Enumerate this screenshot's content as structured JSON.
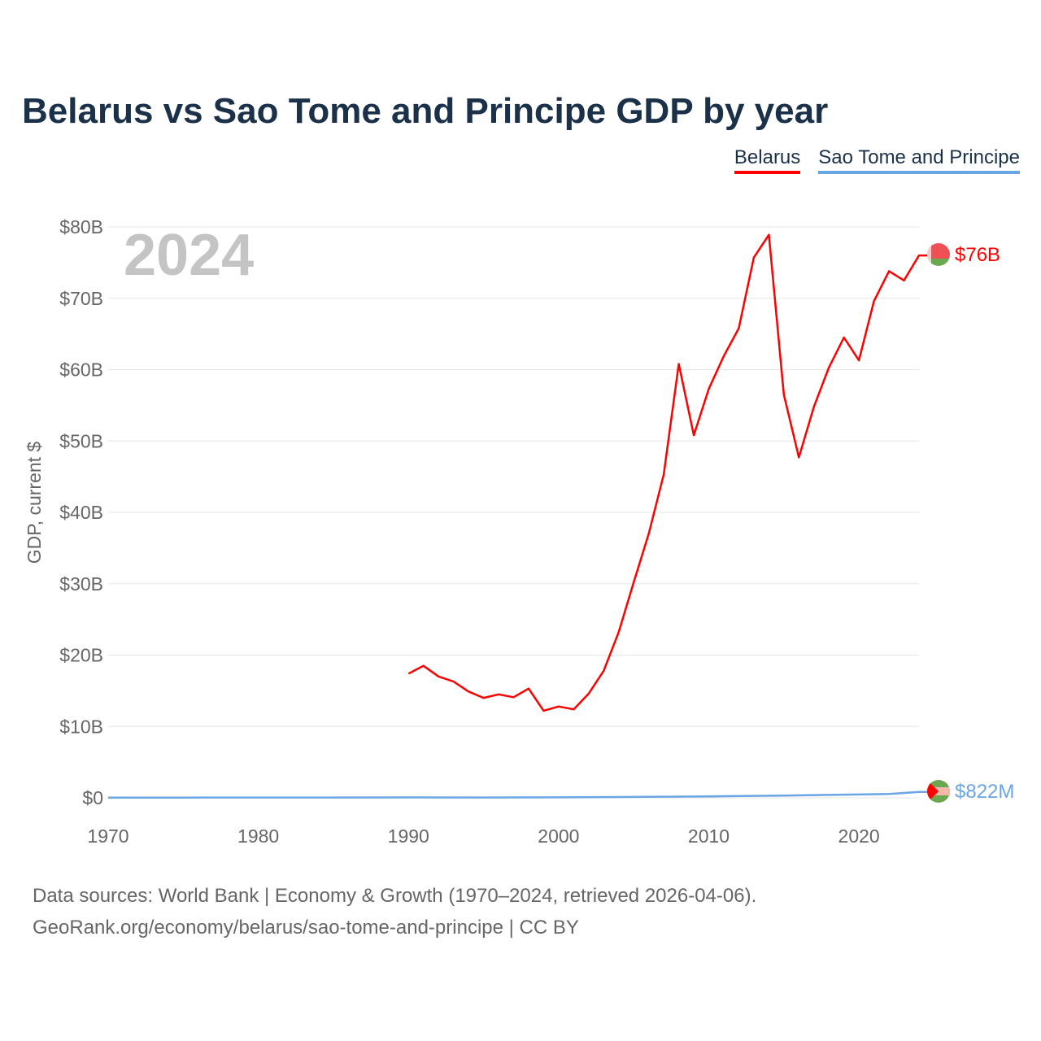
{
  "chart_data": {
    "type": "line",
    "title": "Belarus vs Sao Tome and Principe GDP by year",
    "ylabel": "GDP, current $",
    "xlabel": "",
    "xlim": [
      1970,
      2024
    ],
    "ylim": [
      0,
      80
    ],
    "yunit": "billions USD",
    "x_ticks": [
      1970,
      1980,
      1990,
      2000,
      2010,
      2020
    ],
    "y_ticks": [
      0,
      10,
      20,
      30,
      40,
      50,
      60,
      70,
      80
    ],
    "y_tick_labels": [
      "$0",
      "$10B",
      "$20B",
      "$30B",
      "$40B",
      "$50B",
      "$60B",
      "$70B",
      "$80B"
    ],
    "grid": true,
    "legend_position": "top-right",
    "year_watermark": "2024",
    "series": [
      {
        "name": "Belarus",
        "color": "#ff0000",
        "end_label": "$76B",
        "x": [
          1990,
          1991,
          1992,
          1993,
          1994,
          1995,
          1996,
          1997,
          1998,
          1999,
          2000,
          2001,
          2002,
          2003,
          2004,
          2005,
          2006,
          2007,
          2008,
          2009,
          2010,
          2011,
          2012,
          2013,
          2014,
          2015,
          2016,
          2017,
          2018,
          2019,
          2020,
          2021,
          2022,
          2023,
          2024
        ],
        "values": [
          17.4,
          18.5,
          17.0,
          16.3,
          14.9,
          14.0,
          14.5,
          14.1,
          15.3,
          12.2,
          12.8,
          12.4,
          14.6,
          17.8,
          23.2,
          30.2,
          37.0,
          45.3,
          60.8,
          50.8,
          57.3,
          61.9,
          65.8,
          75.7,
          78.9,
          56.5,
          47.7,
          54.8,
          60.3,
          64.5,
          61.3,
          69.6,
          73.8,
          72.5,
          76.0
        ]
      },
      {
        "name": "Sao Tome and Principe",
        "color": "#6aa5e6",
        "end_label": "$822M",
        "x": [
          1970,
          1975,
          1980,
          1985,
          1990,
          1995,
          2000,
          2005,
          2010,
          2015,
          2018,
          2020,
          2022,
          2023,
          2024
        ],
        "values": [
          0.02,
          0.03,
          0.05,
          0.05,
          0.06,
          0.05,
          0.07,
          0.12,
          0.2,
          0.32,
          0.41,
          0.47,
          0.55,
          0.68,
          0.822
        ]
      }
    ]
  },
  "footer": {
    "line1": "Data sources: World Bank | Economy & Growth (1970–2024, retrieved 2026-04-06).",
    "line2": "GeoRank.org/economy/belarus/sao-tome-and-principe | CC BY"
  }
}
